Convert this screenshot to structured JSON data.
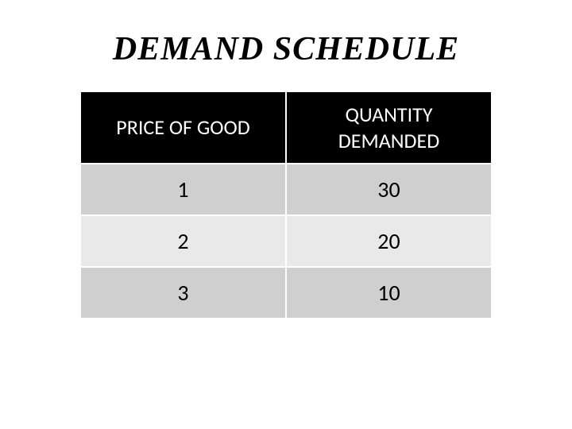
{
  "title": "DEMAND SCHEDULE",
  "table": {
    "type": "table",
    "columns": [
      "PRICE OF GOOD",
      "QUANTITY DEMANDED"
    ],
    "rows": [
      [
        "1",
        "30"
      ],
      [
        "2",
        "20"
      ],
      [
        "3",
        "10"
      ]
    ],
    "header_bg": "#000000",
    "header_fg": "#ffffff",
    "row_odd_bg": "#cfcfcf",
    "row_even_bg": "#e9e9e9",
    "border_color": "#ffffff",
    "title_fontsize": 42,
    "header_fontsize": 26,
    "cell_fontsize": 28
  }
}
